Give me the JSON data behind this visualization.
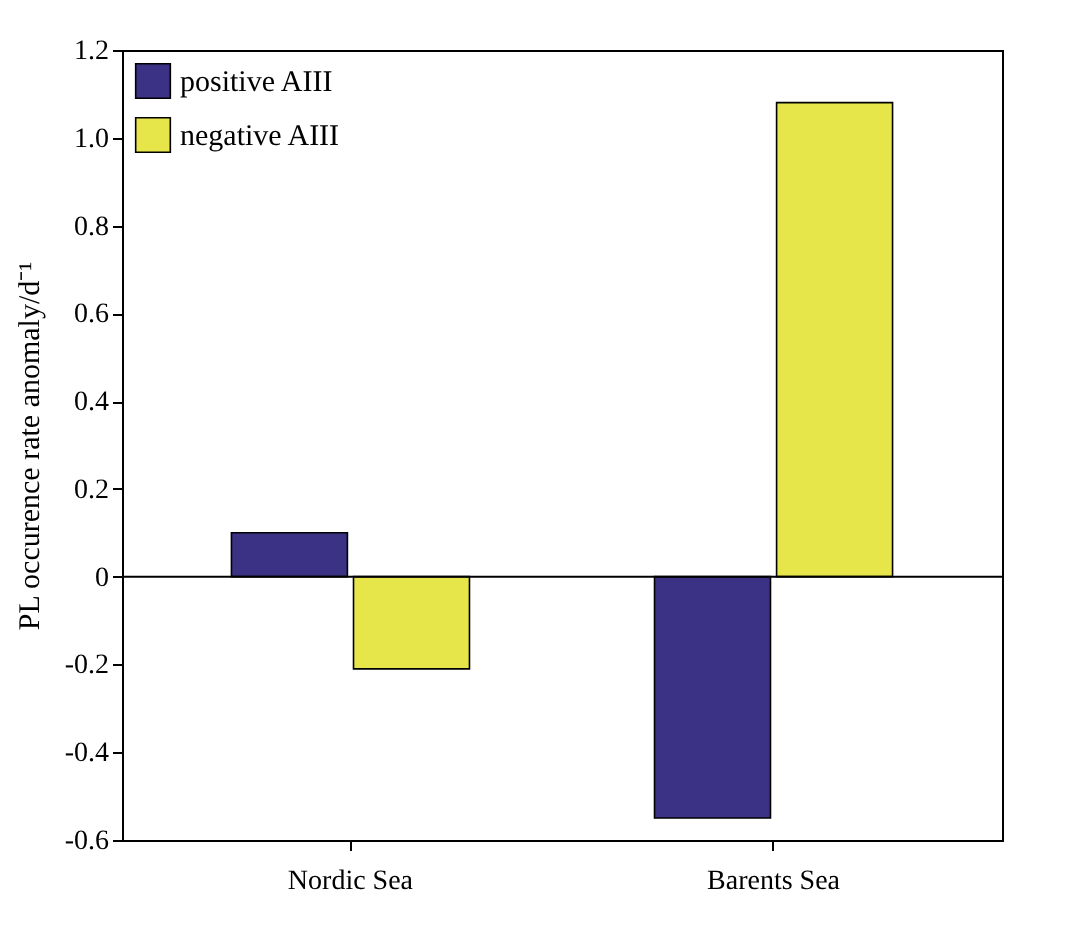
{
  "chart_data": {
    "type": "bar",
    "ylabel": "PL occurence rate anomaly/d⁻¹",
    "categories": [
      "Nordic Sea",
      "Barents Sea"
    ],
    "series": [
      {
        "name": "positive AIII",
        "color": "#3b3285",
        "values": [
          0.1,
          -0.55
        ]
      },
      {
        "name": "negative AIII",
        "color": "#e6e64b",
        "values": [
          -0.21,
          1.08
        ]
      }
    ],
    "ylim": [
      -0.6,
      1.2
    ],
    "yticks": [
      -0.6,
      -0.4,
      -0.2,
      0,
      0.2,
      0.4,
      0.6,
      0.8,
      {
        "value": 1,
        "label": "1.0"
      },
      1.2
    ],
    "grid": false,
    "legend": "top left",
    "ref_lines": [
      {
        "axis": "y",
        "value": 0
      }
    ]
  }
}
